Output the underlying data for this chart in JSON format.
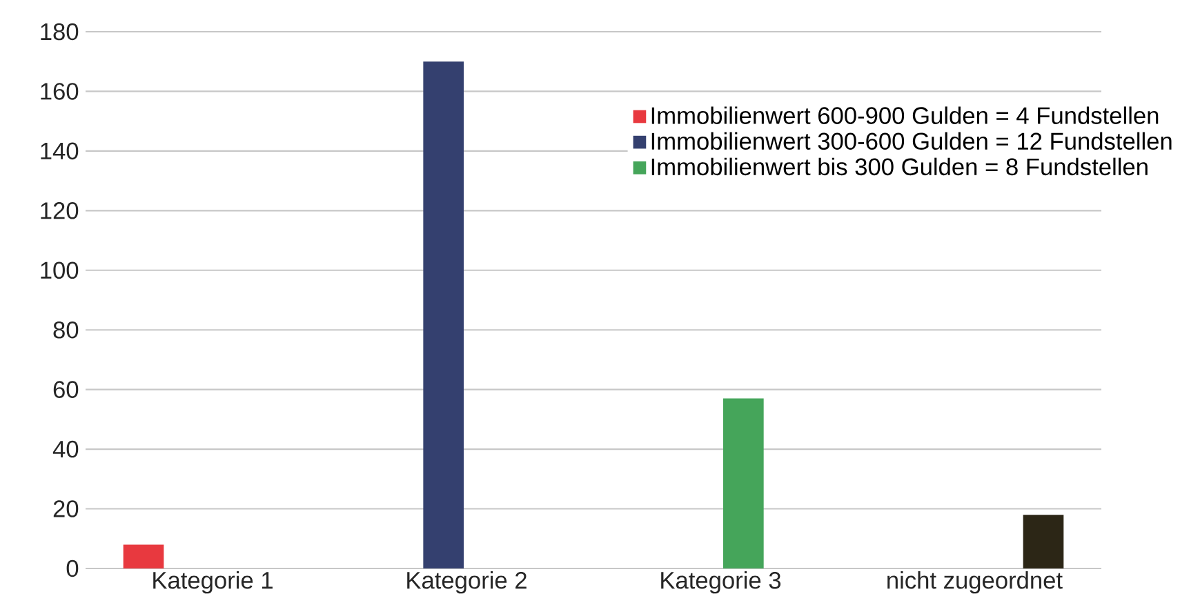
{
  "chart_data": {
    "type": "bar",
    "categories": [
      "Kategorie 1",
      "Kategorie 2",
      "Kategorie 3",
      "nicht zugeordnet"
    ],
    "series": [
      {
        "name": "Immobilienwert 600-900 Gulden = 4 Fundstellen",
        "color": "#e8393f",
        "values": [
          8,
          null,
          null,
          null
        ]
      },
      {
        "name": "Immobilienwert 300-600 Gulden = 12 Fundstellen",
        "color": "#34406f",
        "values": [
          null,
          170,
          null,
          null
        ]
      },
      {
        "name": "Immobilienwert bis 300 Gulden = 8 Fundstellen",
        "color": "#45a55a",
        "values": [
          null,
          null,
          57,
          null
        ]
      },
      {
        "color": "#2c2616",
        "values": [
          null,
          null,
          null,
          18
        ]
      }
    ],
    "ylim": [
      0,
      180
    ],
    "yticks": [
      0,
      20,
      40,
      60,
      80,
      100,
      120,
      140,
      160,
      180
    ],
    "grid": "y",
    "legend": "top right"
  }
}
